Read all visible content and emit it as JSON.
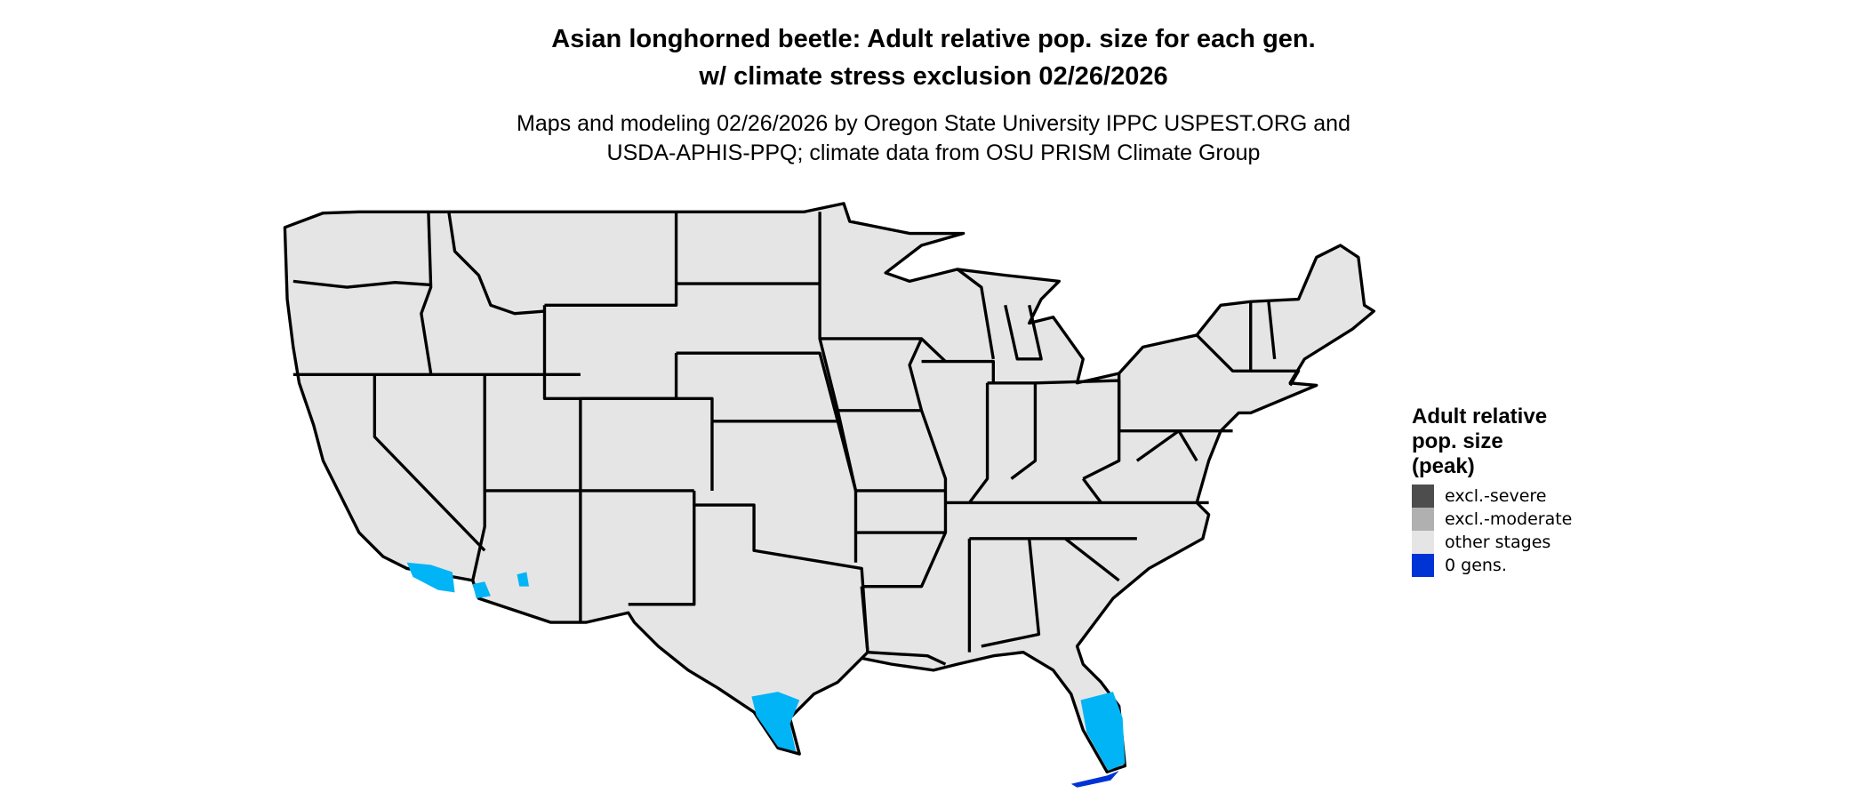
{
  "title": {
    "line1": "Asian longhorned beetle: Adult relative pop. size for each gen.",
    "line2": "w/ climate stress exclusion 02/26/2026"
  },
  "subtitle": {
    "line1": "Maps and modeling 02/26/2026 by Oregon State University IPPC USPEST.ORG and",
    "line2": "USDA-APHIS-PPQ; climate data from OSU PRISM Climate Group"
  },
  "legend": {
    "title_lines": [
      "Adult relative",
      "pop. size",
      "(peak)"
    ],
    "items": [
      {
        "label": "excl.-severe",
        "color": "#4d4d4d"
      },
      {
        "label": "excl.-moderate",
        "color": "#b0b0b0"
      },
      {
        "label": "other stages",
        "color": "#e5e5e5"
      },
      {
        "label": "0 gens.",
        "color": "#0033d6"
      }
    ]
  },
  "map": {
    "land_color": "#e5e5e5",
    "border_color": "#000000",
    "highlight_color": "#00b4f5",
    "highlighted_regions": [
      "south Texas",
      "south Florida",
      "southern California",
      "southwest Arizona"
    ]
  }
}
